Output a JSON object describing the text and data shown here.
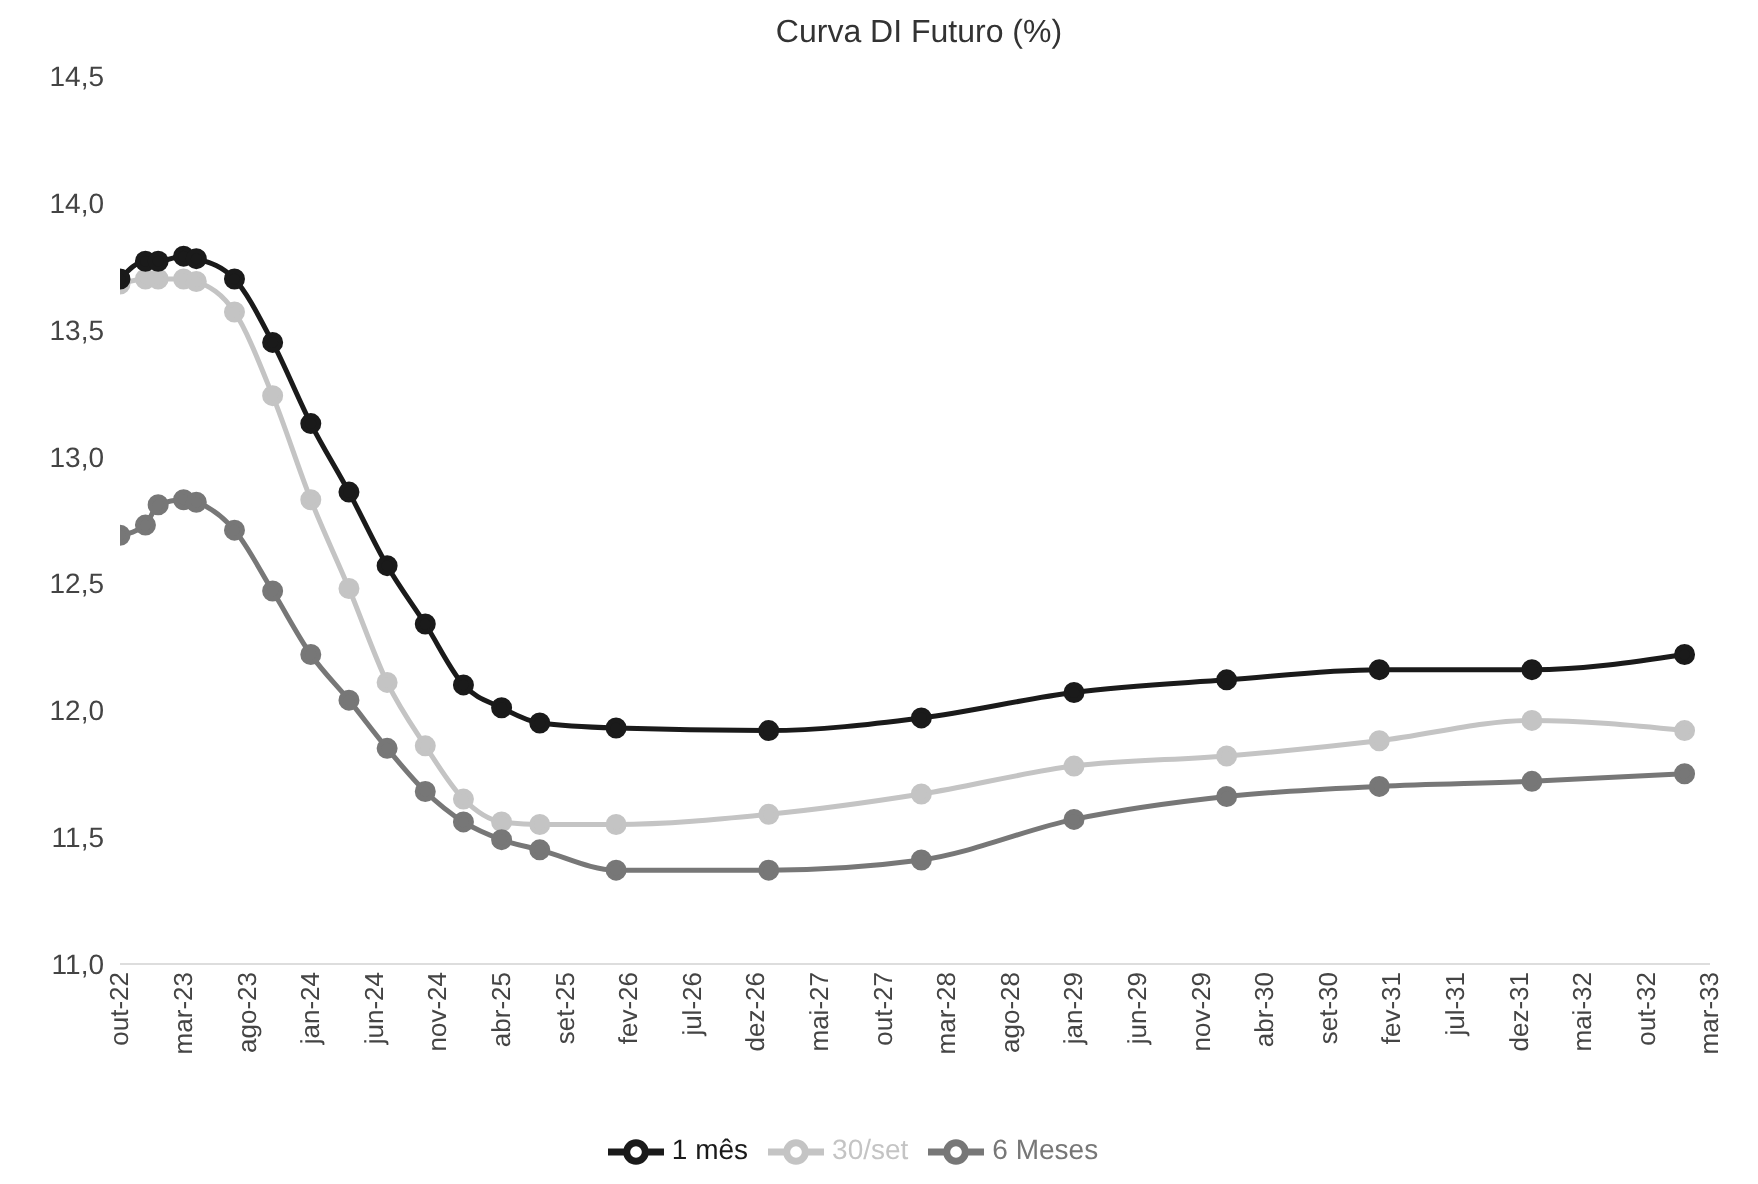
{
  "chart_data": {
    "type": "line",
    "title": "Curva DI Futuro (%)",
    "x": [
      "2022-10",
      "2022-12",
      "2023-01",
      "2023-03",
      "2023-04",
      "2023-07",
      "2023-10",
      "2024-01",
      "2024-04",
      "2024-07",
      "2024-10",
      "2025-01",
      "2025-04",
      "2025-07",
      "2026-01",
      "2027-01",
      "2028-01",
      "2029-01",
      "2030-01",
      "2031-01",
      "2032-01",
      "2033-01"
    ],
    "series": [
      {
        "name": "30/set",
        "color": "#c4c4c4",
        "values": [
          13.68,
          13.7,
          13.7,
          13.7,
          13.69,
          13.57,
          13.24,
          12.83,
          12.48,
          12.11,
          11.86,
          11.65,
          11.56,
          11.55,
          11.55,
          11.59,
          11.67,
          11.78,
          11.82,
          11.88,
          11.96,
          11.92
        ]
      },
      {
        "name": "1 mês",
        "color": "#1a1a1a",
        "values": [
          13.7,
          13.77,
          13.77,
          13.79,
          13.78,
          13.7,
          13.45,
          13.13,
          12.86,
          12.57,
          12.34,
          12.1,
          12.01,
          11.95,
          11.93,
          11.92,
          11.97,
          12.07,
          12.12,
          12.16,
          12.16,
          12.22
        ]
      },
      {
        "name": "6 Meses",
        "color": "#777777",
        "values": [
          12.69,
          12.73,
          12.81,
          12.83,
          12.82,
          12.71,
          12.47,
          12.22,
          12.04,
          11.85,
          11.68,
          11.56,
          11.49,
          11.45,
          11.37,
          11.37,
          11.41,
          11.57,
          11.66,
          11.7,
          11.72,
          11.75
        ]
      }
    ],
    "xlim": [
      "2022-10",
      "2033-03"
    ],
    "xticks": [
      {
        "value": "2022-10",
        "label": "out-22"
      },
      {
        "value": "2023-03",
        "label": "mar-23"
      },
      {
        "value": "2023-08",
        "label": "ago-23"
      },
      {
        "value": "2024-01",
        "label": "jan-24"
      },
      {
        "value": "2024-06",
        "label": "jun-24"
      },
      {
        "value": "2024-11",
        "label": "nov-24"
      },
      {
        "value": "2025-04",
        "label": "abr-25"
      },
      {
        "value": "2025-09",
        "label": "set-25"
      },
      {
        "value": "2026-02",
        "label": "fev-26"
      },
      {
        "value": "2026-07",
        "label": "jul-26"
      },
      {
        "value": "2026-12",
        "label": "dez-26"
      },
      {
        "value": "2027-05",
        "label": "mai-27"
      },
      {
        "value": "2027-10",
        "label": "out-27"
      },
      {
        "value": "2028-03",
        "label": "mar-28"
      },
      {
        "value": "2028-08",
        "label": "ago-28"
      },
      {
        "value": "2029-01",
        "label": "jan-29"
      },
      {
        "value": "2029-06",
        "label": "jun-29"
      },
      {
        "value": "2029-11",
        "label": "nov-29"
      },
      {
        "value": "2030-04",
        "label": "abr-30"
      },
      {
        "value": "2030-09",
        "label": "set-30"
      },
      {
        "value": "2031-02",
        "label": "fev-31"
      },
      {
        "value": "2031-07",
        "label": "jul-31"
      },
      {
        "value": "2031-12",
        "label": "dez-31"
      },
      {
        "value": "2032-05",
        "label": "mai-32"
      },
      {
        "value": "2032-10",
        "label": "out-32"
      },
      {
        "value": "2033-03",
        "label": "mar-33"
      }
    ],
    "ylim": [
      11,
      14.5
    ],
    "yticks": [
      {
        "value": 11,
        "label": "11,0"
      },
      {
        "value": 11.5,
        "label": "11,5"
      },
      {
        "value": 12,
        "label": "12,0"
      },
      {
        "value": 12.5,
        "label": "12,5"
      },
      {
        "value": 13,
        "label": "13,0"
      },
      {
        "value": 13.5,
        "label": "13,5"
      },
      {
        "value": 14,
        "label": "14,0"
      },
      {
        "value": 14.5,
        "label": "14,5"
      }
    ],
    "grid": false,
    "legend": "bottom",
    "marker": "circle",
    "line_style": "solid"
  }
}
